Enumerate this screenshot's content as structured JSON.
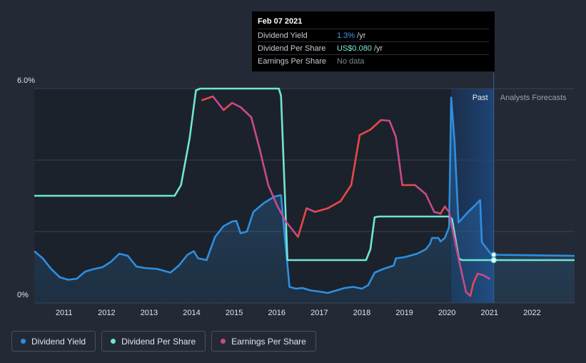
{
  "tooltip": {
    "date": "Feb 07 2021",
    "rows": [
      {
        "label": "Dividend Yield",
        "value": "1.3%",
        "suffix": " /yr"
      },
      {
        "label": "Dividend Per Share",
        "value": "US$0.080",
        "suffix": " /yr"
      },
      {
        "label": "Earnings Per Share",
        "value": "No data",
        "suffix": ""
      }
    ]
  },
  "legend": [
    {
      "label": "Dividend Yield",
      "color": "#2e8fe0"
    },
    {
      "label": "Dividend Per Share",
      "color": "#6fe6d3"
    },
    {
      "label": "Earnings Per Share",
      "color": "#c84a8c"
    }
  ],
  "chart_data": {
    "type": "line",
    "y_axis_labels": [
      "6.0%",
      "0%"
    ],
    "ylim": [
      0,
      6
    ],
    "xlim": [
      2010.3,
      2023.0
    ],
    "x_ticks": [
      "2011",
      "2012",
      "2013",
      "2014",
      "2015",
      "2016",
      "2017",
      "2018",
      "2019",
      "2020",
      "2021",
      "2022"
    ],
    "grid": true,
    "periods": {
      "past": "Past",
      "forecast": "Analysts Forecasts",
      "divider_x": 2021.1
    },
    "colors": {
      "dividend_yield": "#2e8fe0",
      "dividend_per_share": "#6fe6d3",
      "earnings_per_share_up": "#e84848",
      "earnings_per_share_down": "#c84a8c"
    },
    "series": [
      {
        "name": "Dividend Yield",
        "unit": "%",
        "points": [
          [
            2010.3,
            1.45
          ],
          [
            2010.5,
            1.25
          ],
          [
            2010.7,
            0.95
          ],
          [
            2010.9,
            0.72
          ],
          [
            2011.1,
            0.65
          ],
          [
            2011.3,
            0.68
          ],
          [
            2011.5,
            0.88
          ],
          [
            2011.7,
            0.95
          ],
          [
            2011.9,
            1.0
          ],
          [
            2012.1,
            1.15
          ],
          [
            2012.3,
            1.38
          ],
          [
            2012.5,
            1.32
          ],
          [
            2012.7,
            1.02
          ],
          [
            2012.9,
            0.98
          ],
          [
            2013.2,
            0.95
          ],
          [
            2013.5,
            0.85
          ],
          [
            2013.7,
            1.05
          ],
          [
            2013.9,
            1.35
          ],
          [
            2014.05,
            1.45
          ],
          [
            2014.15,
            1.25
          ],
          [
            2014.35,
            1.2
          ],
          [
            2014.55,
            1.85
          ],
          [
            2014.75,
            2.15
          ],
          [
            2014.95,
            2.28
          ],
          [
            2015.05,
            2.3
          ],
          [
            2015.15,
            1.95
          ],
          [
            2015.3,
            2.0
          ],
          [
            2015.45,
            2.55
          ],
          [
            2015.7,
            2.8
          ],
          [
            2015.95,
            2.98
          ],
          [
            2016.1,
            3.02
          ],
          [
            2016.15,
            2.35
          ],
          [
            2016.3,
            0.45
          ],
          [
            2016.45,
            0.4
          ],
          [
            2016.6,
            0.42
          ],
          [
            2016.8,
            0.35
          ],
          [
            2017.0,
            0.32
          ],
          [
            2017.2,
            0.28
          ],
          [
            2017.4,
            0.35
          ],
          [
            2017.6,
            0.42
          ],
          [
            2017.8,
            0.45
          ],
          [
            2018.0,
            0.4
          ],
          [
            2018.15,
            0.5
          ],
          [
            2018.3,
            0.85
          ],
          [
            2018.5,
            0.95
          ],
          [
            2018.75,
            1.05
          ],
          [
            2018.8,
            1.25
          ],
          [
            2019.0,
            1.28
          ],
          [
            2019.3,
            1.38
          ],
          [
            2019.5,
            1.5
          ],
          [
            2019.6,
            1.65
          ],
          [
            2019.65,
            1.82
          ],
          [
            2019.8,
            1.82
          ],
          [
            2019.85,
            1.72
          ],
          [
            2019.95,
            1.82
          ],
          [
            2020.05,
            2.12
          ],
          [
            2020.1,
            5.75
          ],
          [
            2020.18,
            4.5
          ],
          [
            2020.27,
            2.25
          ],
          [
            2020.5,
            2.55
          ],
          [
            2020.65,
            2.72
          ],
          [
            2020.78,
            2.88
          ],
          [
            2020.82,
            1.7
          ],
          [
            2021.05,
            1.35
          ],
          [
            2023.0,
            1.32
          ]
        ]
      },
      {
        "name": "Dividend Per Share",
        "unit": "US$/yr",
        "points": [
          [
            2010.3,
            3.0
          ],
          [
            2013.6,
            3.0
          ],
          [
            2013.75,
            3.3
          ],
          [
            2013.95,
            4.6
          ],
          [
            2014.1,
            5.95
          ],
          [
            2014.2,
            6.0
          ],
          [
            2015.2,
            6.0
          ],
          [
            2016.05,
            6.0
          ],
          [
            2016.1,
            5.8
          ],
          [
            2016.25,
            1.2
          ],
          [
            2016.3,
            1.2
          ],
          [
            2017.0,
            1.2
          ],
          [
            2018.1,
            1.2
          ],
          [
            2018.2,
            1.5
          ],
          [
            2018.3,
            2.4
          ],
          [
            2018.4,
            2.42
          ],
          [
            2019.0,
            2.42
          ],
          [
            2020.05,
            2.42
          ],
          [
            2020.12,
            2.35
          ],
          [
            2020.28,
            1.25
          ],
          [
            2020.35,
            1.2
          ],
          [
            2021.1,
            1.2
          ],
          [
            2023.0,
            1.2
          ]
        ]
      },
      {
        "name": "Earnings Per Share",
        "unit": "%",
        "points": [
          [
            2014.25,
            5.68
          ],
          [
            2014.5,
            5.78
          ],
          [
            2014.75,
            5.4
          ],
          [
            2014.95,
            5.6
          ],
          [
            2015.15,
            5.48
          ],
          [
            2015.4,
            5.2
          ],
          [
            2015.6,
            4.3
          ],
          [
            2015.8,
            3.3
          ],
          [
            2016.0,
            2.75
          ],
          [
            2016.2,
            2.3
          ],
          [
            2016.5,
            1.85
          ],
          [
            2016.7,
            2.65
          ],
          [
            2016.9,
            2.55
          ],
          [
            2017.2,
            2.65
          ],
          [
            2017.5,
            2.85
          ],
          [
            2017.75,
            3.3
          ],
          [
            2017.95,
            4.7
          ],
          [
            2018.2,
            4.85
          ],
          [
            2018.45,
            5.12
          ],
          [
            2018.65,
            5.1
          ],
          [
            2018.8,
            4.65
          ],
          [
            2018.95,
            3.3
          ],
          [
            2019.25,
            3.3
          ],
          [
            2019.5,
            3.05
          ],
          [
            2019.7,
            2.55
          ],
          [
            2019.85,
            2.5
          ],
          [
            2019.95,
            2.7
          ],
          [
            2020.05,
            2.55
          ],
          [
            2020.15,
            1.95
          ],
          [
            2020.3,
            1.1
          ],
          [
            2020.45,
            0.3
          ],
          [
            2020.55,
            0.2
          ],
          [
            2020.62,
            0.55
          ],
          [
            2020.72,
            0.82
          ],
          [
            2020.85,
            0.78
          ],
          [
            2021.0,
            0.68
          ]
        ]
      }
    ]
  }
}
